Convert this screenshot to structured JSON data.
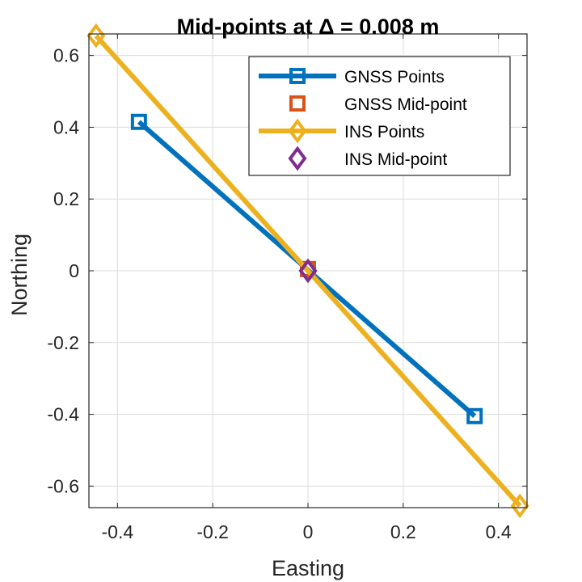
{
  "chart_data": {
    "type": "line",
    "title": "Mid-points at Δ = 0.008 m",
    "xlabel": "Easting",
    "ylabel": "Northing",
    "xlim": [
      -0.46,
      0.46
    ],
    "ylim": [
      -0.66,
      0.66
    ],
    "xticks": [
      -0.4,
      -0.2,
      0,
      0.2,
      0.4
    ],
    "xtick_labels": [
      "-0.4",
      "-0.2",
      "0",
      "0.2",
      "0.4"
    ],
    "yticks": [
      -0.6,
      -0.4,
      -0.2,
      0,
      0.2,
      0.4,
      0.6
    ],
    "ytick_labels": [
      "-0.6",
      "-0.4",
      "-0.2",
      "0",
      "0.2",
      "0.4",
      "0.6"
    ],
    "grid": true,
    "legend_position": "top-right",
    "series": [
      {
        "name": "GNSS Points",
        "style": "line-square",
        "color": "#0072BD",
        "x": [
          -0.355,
          0.35
        ],
        "y": [
          0.415,
          -0.405
        ]
      },
      {
        "name": "GNSS Mid-point",
        "style": "square",
        "color": "#D95319",
        "x": [
          0.0
        ],
        "y": [
          0.005
        ]
      },
      {
        "name": "INS Points",
        "style": "line-diamond",
        "color": "#EDB120",
        "x": [
          -0.445,
          0.445
        ],
        "y": [
          0.655,
          -0.655
        ]
      },
      {
        "name": "INS Mid-point",
        "style": "diamond",
        "color": "#7E2F8E",
        "x": [
          0.0
        ],
        "y": [
          0.0
        ]
      }
    ]
  }
}
